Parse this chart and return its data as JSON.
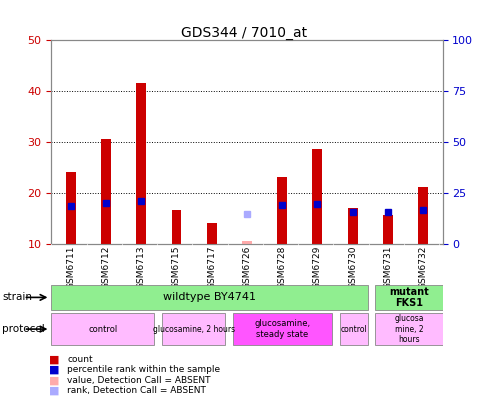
{
  "title": "GDS344 / 7010_at",
  "samples": [
    "GSM6711",
    "GSM6712",
    "GSM6713",
    "GSM6715",
    "GSM6717",
    "GSM6726",
    "GSM6728",
    "GSM6729",
    "GSM6730",
    "GSM6731",
    "GSM6732"
  ],
  "count_values": [
    24.0,
    30.5,
    41.5,
    16.5,
    14.0,
    10.5,
    23.0,
    28.5,
    17.0,
    15.5,
    21.0
  ],
  "rank_values": [
    18.5,
    20.0,
    21.0,
    null,
    null,
    null,
    19.0,
    19.5,
    15.5,
    15.5,
    16.5
  ],
  "absent_count": [
    null,
    null,
    null,
    null,
    null,
    10.5,
    null,
    null,
    null,
    null,
    null
  ],
  "absent_rank": [
    null,
    null,
    null,
    null,
    null,
    14.5,
    null,
    null,
    null,
    null,
    null
  ],
  "ylim_left": [
    10,
    50
  ],
  "ylim_right": [
    0,
    100
  ],
  "yticks_left": [
    10,
    20,
    30,
    40,
    50
  ],
  "yticks_right": [
    0,
    25,
    50,
    75,
    100
  ],
  "legend_items": [
    {
      "color": "#cc0000",
      "label": "count"
    },
    {
      "color": "#0000cc",
      "label": "percentile rank within the sample"
    },
    {
      "color": "#ffaaaa",
      "label": "value, Detection Call = ABSENT"
    },
    {
      "color": "#aaaaff",
      "label": "rank, Detection Call = ABSENT"
    }
  ],
  "bar_width": 0.28,
  "count_color": "#cc0000",
  "rank_color": "#0000cc",
  "absent_count_color": "#ffaaaa",
  "absent_rank_color": "#aaaaff",
  "background_color": "#ffffff",
  "plot_bg_color": "#ffffff",
  "grid_color": "#000000",
  "tick_label_color_left": "#cc0000",
  "tick_label_color_right": "#0000cc",
  "strain_groups": [
    {
      "label": "wildtype BY4741",
      "start": 0,
      "end": 9,
      "color": "#90ee90",
      "fontsize": 8,
      "bold": false
    },
    {
      "label": "mutant\nFKS1",
      "start": 9,
      "end": 11,
      "color": "#90ee90",
      "fontsize": 7,
      "bold": true
    }
  ],
  "protocol_groups": [
    {
      "label": "control",
      "start": 0,
      "end": 3,
      "color": "#ffbbff",
      "fontsize": 6
    },
    {
      "label": "glucosamine, 2 hours",
      "start": 3,
      "end": 5,
      "color": "#ffbbff",
      "fontsize": 5.5
    },
    {
      "label": "glucosamine,\nsteady state",
      "start": 5,
      "end": 8,
      "color": "#ff55ff",
      "fontsize": 6
    },
    {
      "label": "control",
      "start": 8,
      "end": 9,
      "color": "#ffbbff",
      "fontsize": 5.5
    },
    {
      "label": "glucosa\nmine, 2\nhours",
      "start": 9,
      "end": 11,
      "color": "#ffbbff",
      "fontsize": 5.5
    }
  ]
}
